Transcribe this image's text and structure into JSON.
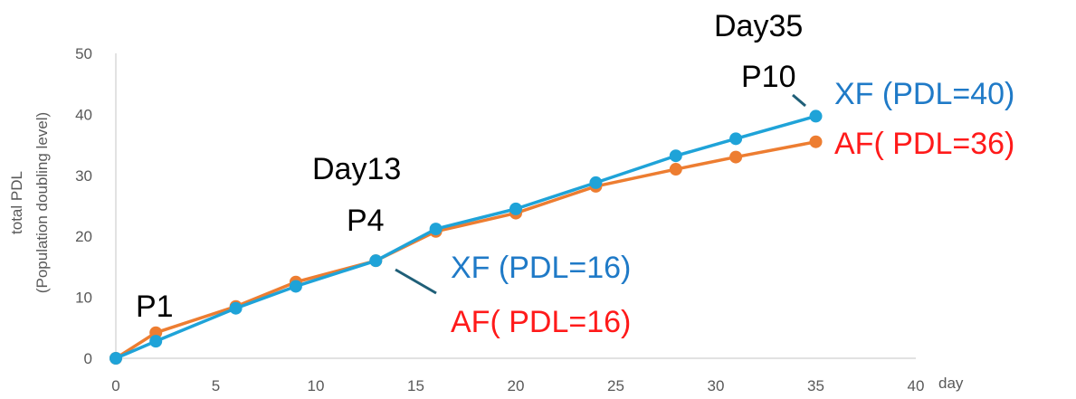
{
  "colors": {
    "xf_line": "#1fa3d8",
    "af_line": "#ed7d31",
    "xf_text": "#1f7ac7",
    "af_text": "#ff1a1a",
    "axis": "#d9d9d9",
    "leader": "#1f5f78"
  },
  "chart_data": {
    "type": "line",
    "xlabel": "day",
    "ylabel_line1": "total PDL",
    "ylabel_line2": "(Population doubling level)",
    "xlim": [
      0,
      40
    ],
    "ylim": [
      0,
      50
    ],
    "x_ticks": [
      0,
      5,
      10,
      15,
      20,
      25,
      30,
      35,
      40
    ],
    "y_ticks": [
      0,
      10,
      20,
      30,
      40,
      50
    ],
    "grid": false,
    "series": [
      {
        "key": "AF",
        "x": [
          0,
          2,
          6,
          9,
          13,
          16,
          20,
          24,
          28,
          31,
          35
        ],
        "y": [
          0,
          4.2,
          8.5,
          12.5,
          16,
          20.8,
          23.8,
          28.2,
          31,
          33,
          35.5
        ]
      },
      {
        "key": "XF",
        "x": [
          0,
          2,
          6,
          9,
          13,
          16,
          20,
          24,
          28,
          31,
          35
        ],
        "y": [
          0,
          2.8,
          8.2,
          11.8,
          16,
          21.2,
          24.5,
          28.8,
          33.2,
          36,
          39.7
        ]
      }
    ],
    "annotations": {
      "p1": "P1",
      "day13": "Day13",
      "p4": "P4",
      "day35": "Day35",
      "p10": "P10",
      "xf_mid": "XF (PDL=16)",
      "af_mid": "AF( PDL=16)",
      "xf_end": "XF (PDL=40)",
      "af_end": "AF( PDL=36)"
    }
  }
}
